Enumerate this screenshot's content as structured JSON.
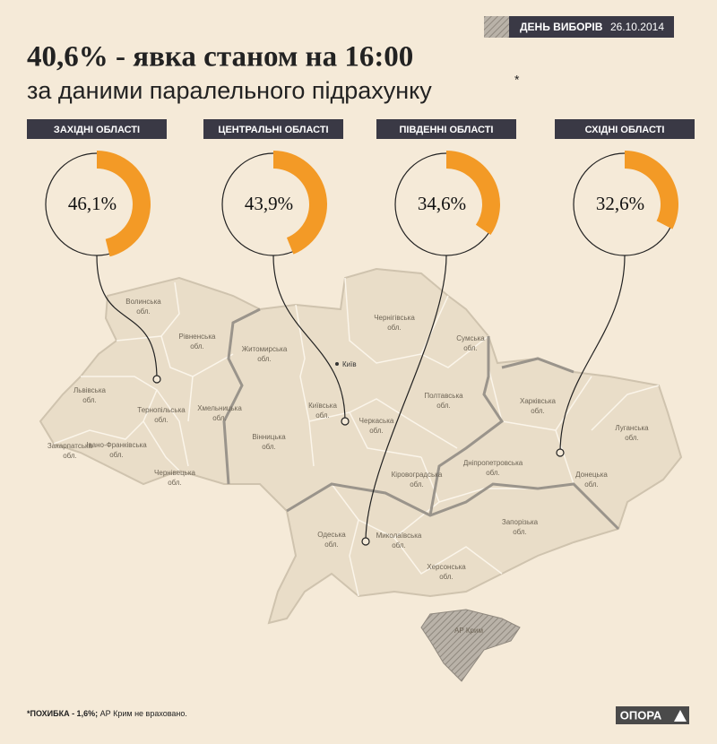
{
  "header": {
    "date_label": "ДЕНЬ ВИБОРІВ",
    "date": "26.10.2014",
    "title": "40,6% - явка станом на 16:00",
    "subtitle": "за даними паралельного підрахунку",
    "asterisk": "*"
  },
  "regions": [
    {
      "label": "ЗАХІДНІ ОБЛАСТІ",
      "value": 46.1,
      "value_label": "46,1%"
    },
    {
      "label": "ЦЕНТРАЛЬНІ ОБЛАСТІ",
      "value": 43.9,
      "value_label": "43,9%"
    },
    {
      "label": "ПІВДЕННІ ОБЛАСТІ",
      "value": 34.6,
      "value_label": "34,6%"
    },
    {
      "label": "СХІДНІ ОБЛАСТІ",
      "value": 32.6,
      "value_label": "32,6%"
    }
  ],
  "map": {
    "oblasts": [
      {
        "name": "Волинська",
        "suffix": "обл."
      },
      {
        "name": "Рівненська",
        "suffix": "обл."
      },
      {
        "name": "Житомирська",
        "suffix": "обл."
      },
      {
        "name": "Чернігівська",
        "suffix": "обл."
      },
      {
        "name": "Сумська",
        "suffix": "обл."
      },
      {
        "name": "Львівська",
        "suffix": "обл."
      },
      {
        "name": "Тернопільська",
        "suffix": "обл."
      },
      {
        "name": "Хмельницька",
        "suffix": "обл."
      },
      {
        "name": "Закарпатська",
        "suffix": "обл."
      },
      {
        "name": "Івано-Франківська",
        "suffix": "обл."
      },
      {
        "name": "Чернівецька",
        "suffix": "обл."
      },
      {
        "name": "Вінницька",
        "suffix": "обл."
      },
      {
        "name": "Київська",
        "suffix": "обл."
      },
      {
        "name": "Черкаська",
        "suffix": "обл."
      },
      {
        "name": "Полтавська",
        "suffix": "обл."
      },
      {
        "name": "Харківська",
        "suffix": "обл."
      },
      {
        "name": "Луганська",
        "suffix": "обл."
      },
      {
        "name": "Дніпропетровська",
        "suffix": "обл."
      },
      {
        "name": "Донецька",
        "suffix": "обл."
      },
      {
        "name": "Кіровоградська",
        "suffix": "обл."
      },
      {
        "name": "Одеська",
        "suffix": "обл."
      },
      {
        "name": "Миколаївська",
        "suffix": "обл."
      },
      {
        "name": "Запорізька",
        "suffix": "обл."
      },
      {
        "name": "Херсонська",
        "suffix": "обл."
      }
    ],
    "capital": "Київ",
    "crimea": "АР Крим"
  },
  "footer": {
    "note_bold": "*ПОХИБКА - 1,6%;",
    "note": "АР Крим не враховано.",
    "logo": "ОПОРА"
  }
}
